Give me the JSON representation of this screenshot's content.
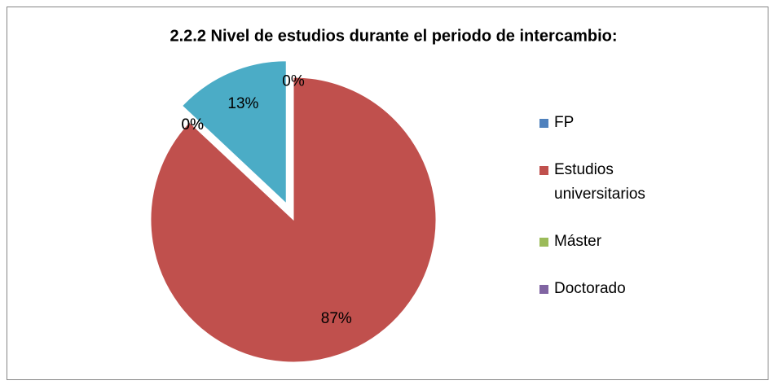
{
  "chart_data": {
    "type": "pie",
    "title": "2.2.2 Nivel de estudios durante el periodo de intercambio:",
    "categories": [
      "FP",
      "Estudios universitarios",
      "Máster",
      "Doctorado",
      null
    ],
    "values": [
      0,
      87,
      0,
      0,
      13
    ],
    "value_labels": [
      "0%",
      "87%",
      "0%",
      "0%",
      "13%"
    ],
    "colors": [
      "#4f81bd",
      "#c0504d",
      "#9bbb59",
      "#8064a2",
      "#4bacc6"
    ],
    "exploded": [
      4
    ],
    "legend": "right"
  }
}
